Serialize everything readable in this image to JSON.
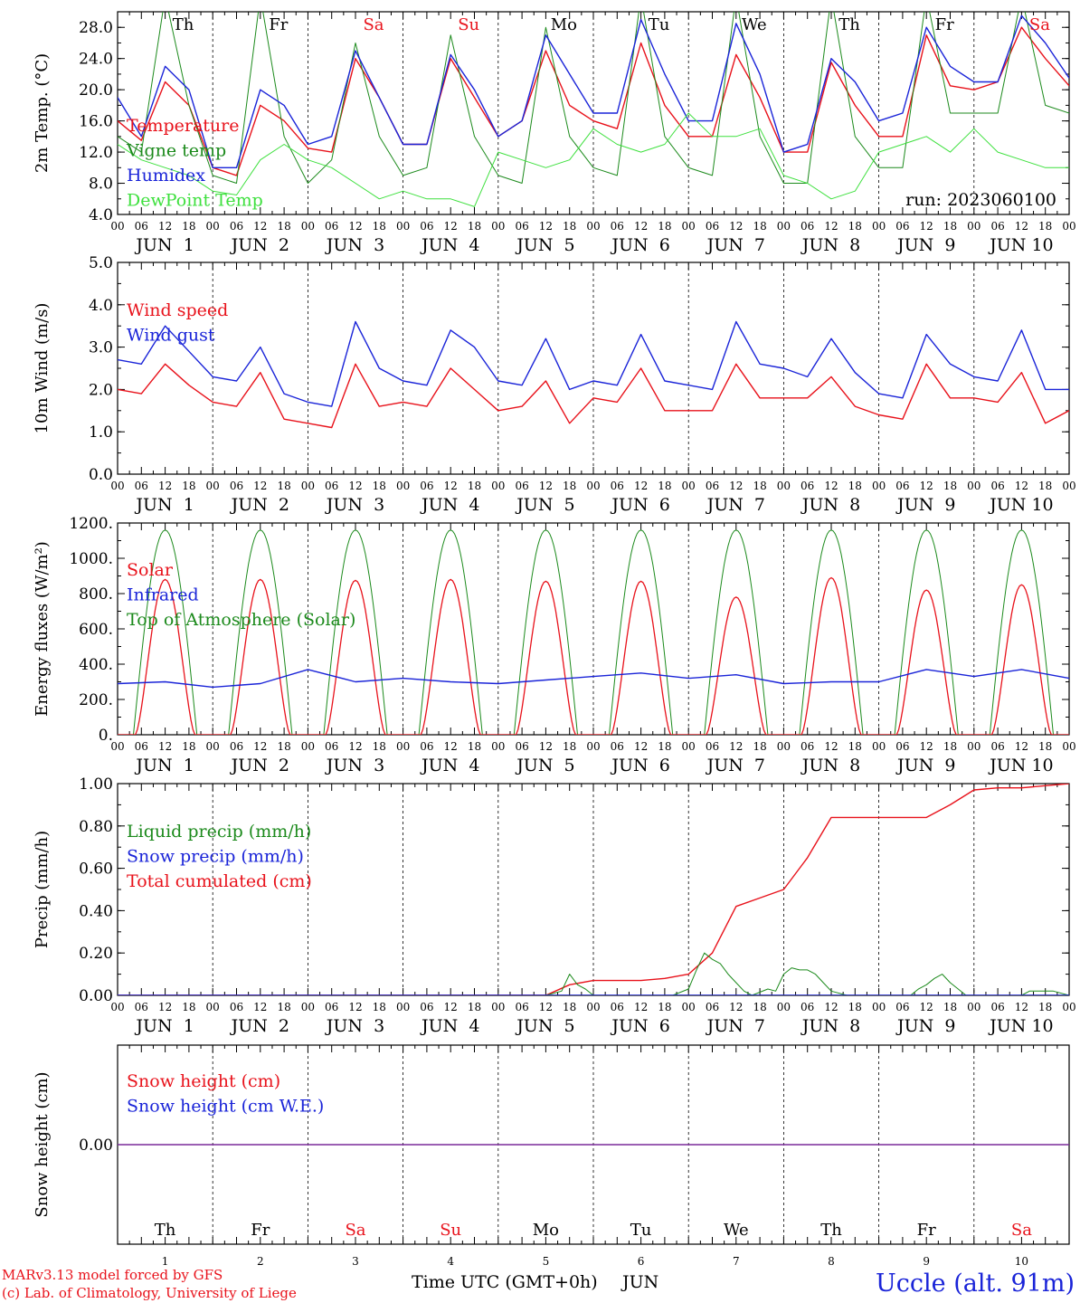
{
  "chart_data": [
    {
      "type": "line",
      "ylabel": "2m Temp. (°C)",
      "ylim": [
        4,
        30
      ],
      "yticks": [
        "4.0",
        "8.0",
        "12.0",
        "16.0",
        "20.0",
        "24.0",
        "28.0"
      ],
      "ytick_values": [
        4,
        8,
        12,
        16,
        20,
        24,
        28
      ],
      "annotation": "run: 2023060100",
      "legend": [
        {
          "label": "Temperature",
          "color": "#e8121b"
        },
        {
          "label": "Vigne temp",
          "color": "#1c8a1c"
        },
        {
          "label": "Humidex",
          "color": "#1a24d8"
        },
        {
          "label": "DewPoint Temp",
          "color": "#3ee03e"
        }
      ],
      "series": [
        {
          "name": "Temperature",
          "color": "#e8121b",
          "x": [
            0,
            6,
            12,
            18,
            24,
            30,
            36,
            42,
            48,
            54,
            60,
            66,
            72,
            78,
            84,
            90,
            96,
            102,
            108,
            114,
            120,
            126,
            132,
            138,
            144,
            150,
            156,
            162,
            168,
            174,
            180,
            186,
            192,
            198,
            204,
            210,
            216,
            222,
            228,
            234,
            240
          ],
          "values": [
            16,
            13.5,
            21,
            18,
            10,
            9,
            18,
            16,
            12.5,
            12,
            24,
            19,
            13,
            13,
            24,
            19,
            14,
            16,
            25,
            18,
            16,
            15,
            26,
            18,
            14,
            14,
            24.5,
            19,
            12,
            12,
            23.5,
            18,
            14,
            14,
            27,
            20.5,
            20,
            21,
            28,
            24,
            20.5
          ]
        },
        {
          "name": "Vigne temp",
          "color": "#1c8a1c",
          "x": [
            0,
            6,
            12,
            18,
            24,
            30,
            36,
            42,
            48,
            54,
            60,
            66,
            72,
            78,
            84,
            90,
            96,
            102,
            108,
            114,
            120,
            126,
            132,
            138,
            144,
            150,
            156,
            162,
            168,
            174,
            180,
            186,
            192,
            198,
            204,
            210,
            216,
            222,
            228,
            234,
            240
          ],
          "values": [
            14,
            12,
            32,
            18,
            9,
            8,
            32,
            14,
            8,
            11,
            26,
            14,
            9,
            10,
            27,
            14,
            9,
            8,
            28,
            14,
            10,
            9,
            32,
            14,
            10,
            9,
            32,
            14,
            8,
            8,
            32,
            14,
            10,
            10,
            32,
            17,
            17,
            17,
            32,
            18,
            17
          ]
        },
        {
          "name": "Humidex",
          "color": "#1a24d8",
          "x": [
            0,
            6,
            12,
            18,
            24,
            30,
            36,
            42,
            48,
            54,
            60,
            66,
            72,
            78,
            84,
            90,
            96,
            102,
            108,
            114,
            120,
            126,
            132,
            138,
            144,
            150,
            156,
            162,
            168,
            174,
            180,
            186,
            192,
            198,
            204,
            210,
            216,
            222,
            228,
            234,
            240
          ],
          "values": [
            19,
            14,
            23,
            20,
            10,
            10,
            20,
            18,
            13,
            14,
            25,
            19,
            13,
            13,
            24.5,
            20,
            14,
            16,
            27,
            22,
            17,
            17,
            29,
            22,
            16,
            16,
            28.5,
            22,
            12,
            13,
            24,
            21,
            16,
            17,
            28,
            23,
            21,
            21,
            29.5,
            26,
            21.5
          ]
        },
        {
          "name": "DewPoint Temp",
          "color": "#3ee03e",
          "x": [
            0,
            6,
            12,
            18,
            24,
            30,
            36,
            42,
            48,
            54,
            60,
            66,
            72,
            78,
            84,
            90,
            96,
            102,
            108,
            114,
            120,
            126,
            132,
            138,
            144,
            150,
            156,
            162,
            168,
            174,
            180,
            186,
            192,
            198,
            204,
            210,
            216,
            222,
            228,
            234,
            240
          ],
          "values": [
            13,
            11,
            10,
            9,
            7,
            6.5,
            11,
            13,
            11,
            10,
            8,
            6,
            7,
            6,
            6,
            5,
            12,
            11,
            10,
            11,
            15,
            13,
            12,
            13,
            17,
            14,
            14,
            15,
            9,
            8,
            6,
            7,
            12,
            13,
            14,
            12,
            15,
            12,
            11,
            10,
            10
          ]
        }
      ]
    },
    {
      "type": "line",
      "ylabel": "10m Wind (m/s)",
      "ylim": [
        0,
        5
      ],
      "yticks": [
        "0.0",
        "1.0",
        "2.0",
        "3.0",
        "4.0",
        "5.0"
      ],
      "ytick_values": [
        0,
        1,
        2,
        3,
        4,
        5
      ],
      "legend": [
        {
          "label": "Wind speed",
          "color": "#e8121b"
        },
        {
          "label": "Wind gust",
          "color": "#1a24d8"
        }
      ],
      "series": [
        {
          "name": "Wind speed",
          "color": "#e8121b",
          "x": [
            0,
            6,
            12,
            18,
            24,
            30,
            36,
            42,
            48,
            54,
            60,
            66,
            72,
            78,
            84,
            90,
            96,
            102,
            108,
            114,
            120,
            126,
            132,
            138,
            144,
            150,
            156,
            162,
            168,
            174,
            180,
            186,
            192,
            198,
            204,
            210,
            216,
            222,
            228,
            234,
            240
          ],
          "values": [
            2.0,
            1.9,
            2.6,
            2.1,
            1.7,
            1.6,
            2.4,
            1.3,
            1.2,
            1.1,
            2.6,
            1.6,
            1.7,
            1.6,
            2.5,
            2.0,
            1.5,
            1.6,
            2.2,
            1.2,
            1.8,
            1.7,
            2.5,
            1.5,
            1.5,
            1.5,
            2.6,
            1.8,
            1.8,
            1.8,
            2.3,
            1.6,
            1.4,
            1.3,
            2.6,
            1.8,
            1.8,
            1.7,
            2.4,
            1.2,
            1.5
          ]
        },
        {
          "name": "Wind gust",
          "color": "#1a24d8",
          "x": [
            0,
            6,
            12,
            18,
            24,
            30,
            36,
            42,
            48,
            54,
            60,
            66,
            72,
            78,
            84,
            90,
            96,
            102,
            108,
            114,
            120,
            126,
            132,
            138,
            144,
            150,
            156,
            162,
            168,
            174,
            180,
            186,
            192,
            198,
            204,
            210,
            216,
            222,
            228,
            234,
            240
          ],
          "values": [
            2.7,
            2.6,
            3.5,
            2.9,
            2.3,
            2.2,
            3.0,
            1.9,
            1.7,
            1.6,
            3.6,
            2.5,
            2.2,
            2.1,
            3.4,
            3.0,
            2.2,
            2.1,
            3.2,
            2.0,
            2.2,
            2.1,
            3.3,
            2.2,
            2.1,
            2.0,
            3.6,
            2.6,
            2.5,
            2.3,
            3.2,
            2.4,
            1.9,
            1.8,
            3.3,
            2.6,
            2.3,
            2.2,
            3.4,
            2.0,
            2.0
          ]
        }
      ]
    },
    {
      "type": "line",
      "ylabel": "Energy fluxes (W/m²)",
      "ylim": [
        0,
        1200
      ],
      "yticks": [
        "0.",
        "200.",
        "400.",
        "600.",
        "800.",
        "1000.",
        "1200."
      ],
      "ytick_values": [
        0,
        200,
        400,
        600,
        800,
        1000,
        1200
      ],
      "legend": [
        {
          "label": "Solar",
          "color": "#e8121b"
        },
        {
          "label": "Infrared",
          "color": "#1a24d8"
        },
        {
          "label": "Top of Atmosphere (Solar)",
          "color": "#1c8a1c"
        }
      ],
      "solar_daily_peaks": [
        880,
        880,
        875,
        880,
        870,
        870,
        780,
        890,
        820,
        850
      ],
      "toa_daily_peak": 1160,
      "series": [
        {
          "name": "Infrared",
          "color": "#1a24d8",
          "x": [
            0,
            12,
            24,
            36,
            48,
            60,
            72,
            84,
            96,
            108,
            120,
            132,
            144,
            156,
            168,
            180,
            192,
            204,
            216,
            228,
            240
          ],
          "values": [
            290,
            300,
            270,
            290,
            370,
            300,
            320,
            300,
            290,
            310,
            330,
            350,
            320,
            340,
            290,
            300,
            300,
            370,
            330,
            370,
            320
          ]
        }
      ]
    },
    {
      "type": "line",
      "ylabel": "Precip (mm/h)",
      "ylim": [
        0,
        1
      ],
      "yticks": [
        "0.00",
        "0.20",
        "0.40",
        "0.60",
        "0.80",
        "1.00"
      ],
      "ytick_values": [
        0,
        0.2,
        0.4,
        0.6,
        0.8,
        1.0
      ],
      "legend": [
        {
          "label": "Liquid precip (mm/h)",
          "color": "#1c8a1c"
        },
        {
          "label": "Snow precip (mm/h)",
          "color": "#1a24d8"
        },
        {
          "label": "Total cumulated (cm)",
          "color": "#e8121b"
        }
      ],
      "series": [
        {
          "name": "Total cumulated (cm)",
          "color": "#e8121b",
          "x": [
            0,
            108,
            114,
            120,
            132,
            138,
            144,
            150,
            156,
            162,
            168,
            174,
            180,
            186,
            192,
            198,
            204,
            210,
            216,
            222,
            228,
            234,
            240
          ],
          "values": [
            0,
            0,
            0.05,
            0.07,
            0.07,
            0.08,
            0.1,
            0.2,
            0.42,
            0.46,
            0.5,
            0.65,
            0.84,
            0.84,
            0.84,
            0.84,
            0.84,
            0.9,
            0.97,
            0.98,
            0.98,
            0.99,
            1.0
          ]
        },
        {
          "name": "Liquid precip (mm/h)",
          "color": "#1c8a1c",
          "x": [
            0,
            108,
            112,
            114,
            116,
            118,
            120,
            140,
            144,
            146,
            148,
            150,
            152,
            154,
            156,
            158,
            160,
            164,
            166,
            168,
            170,
            172,
            174,
            176,
            178,
            180,
            184,
            200,
            202,
            204,
            206,
            208,
            210,
            212,
            214,
            228,
            230,
            236,
            240
          ],
          "values": [
            0,
            0,
            0.02,
            0.1,
            0.05,
            0.03,
            0,
            0,
            0.03,
            0.12,
            0.2,
            0.17,
            0.15,
            0.1,
            0.06,
            0.02,
            0,
            0.03,
            0.02,
            0.1,
            0.13,
            0.12,
            0.12,
            0.1,
            0.06,
            0.02,
            0,
            0,
            0.03,
            0.05,
            0.08,
            0.1,
            0.06,
            0.03,
            0,
            0,
            0.02,
            0.02,
            0
          ]
        },
        {
          "name": "Snow precip (mm/h)",
          "color": "#1a24d8",
          "x": [
            0,
            240
          ],
          "values": [
            0,
            0
          ]
        }
      ]
    },
    {
      "type": "line",
      "ylabel": "Snow height (cm)",
      "ylim": [
        -1,
        1
      ],
      "yticks": [
        "0.00"
      ],
      "ytick_values": [
        0
      ],
      "legend": [
        {
          "label": "Snow height (cm)",
          "color": "#e8121b"
        },
        {
          "label": "Snow height (cm W.E.)",
          "color": "#1a24d8"
        }
      ],
      "series": [
        {
          "name": "Snow height (cm)",
          "color": "#7a2a9a",
          "x": [
            0,
            240
          ],
          "values": [
            0,
            0
          ]
        }
      ]
    }
  ],
  "x_axis": {
    "hour_ticks": [
      "00",
      "06",
      "12",
      "18"
    ],
    "final_tick": "00",
    "day_labels": [
      "JUN  1",
      "JUN  2",
      "JUN  3",
      "JUN  4",
      "JUN  5",
      "JUN  6",
      "JUN  7",
      "JUN  8",
      "JUN  9",
      "JUN 10"
    ],
    "weekdays": [
      "Th",
      "Fr",
      "Sa",
      "Su",
      "Mo",
      "Tu",
      "We",
      "Th",
      "Fr",
      "Sa"
    ],
    "weekday_colors": [
      "#000000",
      "#000000",
      "#e8121b",
      "#e8121b",
      "#000000",
      "#000000",
      "#000000",
      "#000000",
      "#000000",
      "#e8121b"
    ],
    "day_numbers": [
      "1",
      "2",
      "3",
      "4",
      "5",
      "6",
      "7",
      "8",
      "9",
      "10"
    ],
    "xlabel": "Time UTC (GMT+0h)",
    "month": "JUN"
  },
  "footer": {
    "credit_line1": "MARv3.13 model forced by GFS",
    "credit_line2": "(c) Lab. of Climatology, University of Liege",
    "station": "Uccle (alt. 91m)",
    "credit_color": "#e8121b",
    "station_color": "#1a24d8"
  }
}
